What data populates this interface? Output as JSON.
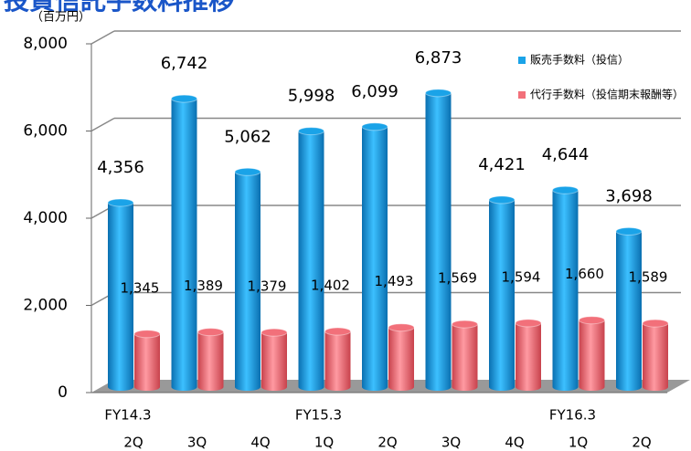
{
  "chart_data": {
    "type": "bar3d",
    "title": "投資信託手数料推移",
    "unit_label": "（百万円）",
    "categories": [
      "2Q",
      "3Q",
      "4Q",
      "1Q",
      "2Q",
      "3Q",
      "4Q",
      "1Q",
      "2Q"
    ],
    "groups": [
      "FY14.3",
      null,
      null,
      "FY15.3",
      null,
      null,
      null,
      "FY16.3",
      null
    ],
    "series": [
      {
        "name": "販売手数料（投信）",
        "color": "#1aa3e8",
        "values": [
          4356,
          6742,
          5062,
          5998,
          6099,
          6873,
          4421,
          4644,
          3698
        ],
        "value_labels": [
          "4,356",
          "6,742",
          "5,062",
          "5,998",
          "6,099",
          "6,873",
          "4,421",
          "4,644",
          "3,698"
        ]
      },
      {
        "name": "代行手数料（投信期末報酬等）",
        "color": "#f2707a",
        "values": [
          1345,
          1389,
          1379,
          1402,
          1493,
          1569,
          1594,
          1660,
          1589
        ],
        "value_labels": [
          "1,345",
          "1,389",
          "1,379",
          "1,402",
          "1,493",
          "1,569",
          "1,594",
          "1,660",
          "1,589"
        ]
      }
    ],
    "ylim": [
      0,
      8000
    ],
    "yticks": [
      0,
      {
        "value": 2000,
        "label": "2,000"
      },
      {
        "value": 4000,
        "label": "4,000"
      },
      {
        "value": 6000,
        "label": "6,000"
      },
      {
        "value": 8000,
        "label": "8,000"
      }
    ],
    "grid": true,
    "legend": "top-right"
  }
}
